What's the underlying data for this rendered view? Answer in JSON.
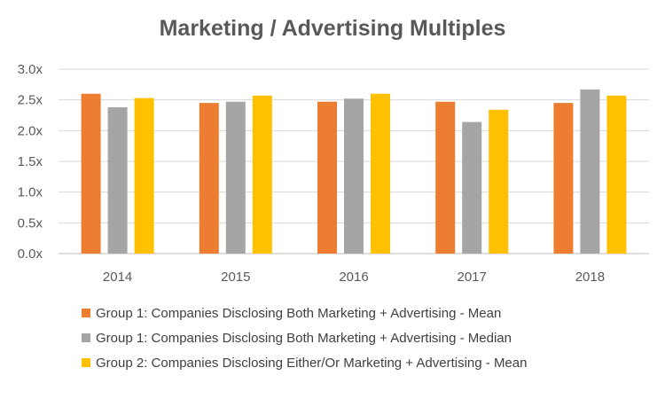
{
  "chart_data": {
    "type": "bar",
    "title": "Marketing / Advertising Multiples",
    "xlabel": "",
    "ylabel": "",
    "categories": [
      "2014",
      "2015",
      "2016",
      "2017",
      "2018"
    ],
    "series": [
      {
        "name": "Group 1: Companies Disclosing Both Marketing + Advertising - Mean",
        "color": "#ED7D31",
        "values": [
          2.6,
          2.45,
          2.47,
          2.47,
          2.45
        ]
      },
      {
        "name": "Group 1: Companies Disclosing Both Marketing + Advertising - Median",
        "color": "#A5A5A5",
        "values": [
          2.38,
          2.47,
          2.52,
          2.14,
          2.67
        ]
      },
      {
        "name": "Group 2: Companies Disclosing Either/Or Marketing + Advertising - Mean",
        "color": "#FFC000",
        "values": [
          2.53,
          2.57,
          2.6,
          2.34,
          2.57
        ]
      }
    ],
    "ylim": [
      0,
      3.0
    ],
    "yticks": [
      "0.0x",
      "0.5x",
      "1.0x",
      "1.5x",
      "2.0x",
      "2.5x",
      "3.0x"
    ],
    "ytick_values": [
      0,
      0.5,
      1.0,
      1.5,
      2.0,
      2.5,
      3.0
    ],
    "grid": true,
    "legend_position": "bottom"
  }
}
